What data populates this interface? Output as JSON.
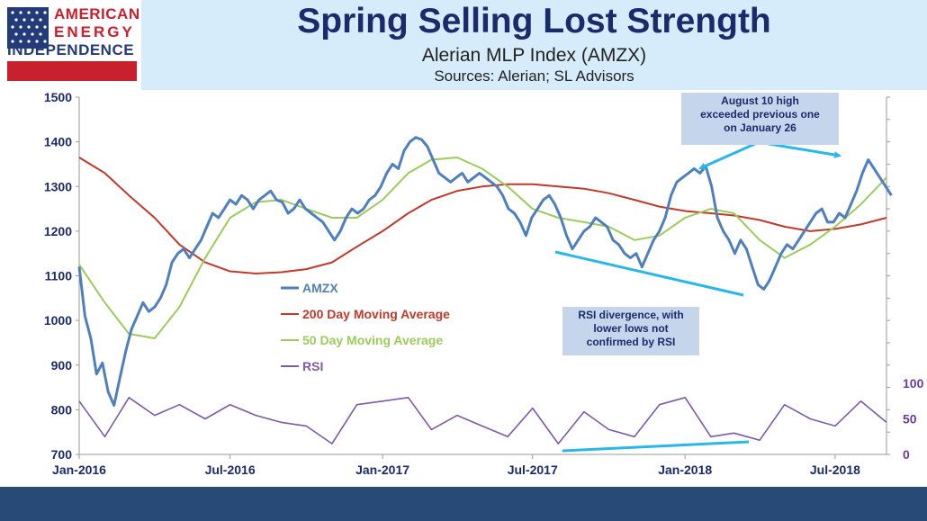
{
  "logo": {
    "line1": "AMERICAN",
    "line2": "ENERGY",
    "line3": "INDEPENDENCE"
  },
  "header": {
    "title": "Spring Selling Lost Strength",
    "subtitle": "Alerian MLP Index (AMZX)",
    "sources": "Sources: Alerian; SL Advisors"
  },
  "annotations": {
    "august": [
      "August 10 high",
      "exceeded previous one",
      "on January 26"
    ],
    "rsi": [
      "RSI divergence, with",
      "lower lows not",
      "confirmed by RSI"
    ]
  },
  "colors": {
    "amzx": "#4f7fbd",
    "ma200": "#c0392b",
    "ma50": "#9bcc5c",
    "rsi": "#7d5aa6",
    "arrow": "#29b6e8"
  },
  "chart_data": {
    "type": "line",
    "x_ticks": [
      "Jan-2016",
      "Jul-2016",
      "Jan-2017",
      "Jul-2017",
      "Jan-2018",
      "Jul-2018"
    ],
    "y_ticks": [
      "1500",
      "1400",
      "1300",
      "1200",
      "1100",
      "1000",
      "900",
      "800",
      "700"
    ],
    "y_right_ticks": [
      "100",
      "50",
      "0"
    ],
    "ylim": [
      700,
      1500
    ],
    "y_right_lim": [
      0,
      100
    ],
    "xlim": [
      "2016-01-01",
      "2018-09-01"
    ],
    "legend": [
      "AMZX",
      "200 Day Moving Average",
      "50 Day Moving Average",
      "RSI"
    ],
    "series": [
      {
        "name": "AMZX",
        "points": [
          [
            "2016-01-01",
            1120
          ],
          [
            "2016-01-08",
            1010
          ],
          [
            "2016-01-15",
            960
          ],
          [
            "2016-01-22",
            880
          ],
          [
            "2016-01-29",
            905
          ],
          [
            "2016-02-05",
            840
          ],
          [
            "2016-02-12",
            810
          ],
          [
            "2016-02-19",
            870
          ],
          [
            "2016-02-26",
            930
          ],
          [
            "2016-03-04",
            980
          ],
          [
            "2016-03-11",
            1010
          ],
          [
            "2016-03-18",
            1040
          ],
          [
            "2016-03-25",
            1020
          ],
          [
            "2016-04-01",
            1030
          ],
          [
            "2016-04-08",
            1050
          ],
          [
            "2016-04-15",
            1080
          ],
          [
            "2016-04-22",
            1130
          ],
          [
            "2016-04-29",
            1150
          ],
          [
            "2016-05-06",
            1160
          ],
          [
            "2016-05-13",
            1140
          ],
          [
            "2016-05-20",
            1160
          ],
          [
            "2016-05-27",
            1180
          ],
          [
            "2016-06-03",
            1210
          ],
          [
            "2016-06-10",
            1240
          ],
          [
            "2016-06-17",
            1230
          ],
          [
            "2016-06-24",
            1250
          ],
          [
            "2016-07-01",
            1270
          ],
          [
            "2016-07-08",
            1260
          ],
          [
            "2016-07-15",
            1280
          ],
          [
            "2016-07-22",
            1270
          ],
          [
            "2016-07-29",
            1250
          ],
          [
            "2016-08-05",
            1270
          ],
          [
            "2016-08-12",
            1280
          ],
          [
            "2016-08-19",
            1290
          ],
          [
            "2016-08-26",
            1270
          ],
          [
            "2016-09-02",
            1265
          ],
          [
            "2016-09-09",
            1240
          ],
          [
            "2016-09-16",
            1250
          ],
          [
            "2016-09-23",
            1270
          ],
          [
            "2016-09-30",
            1250
          ],
          [
            "2016-10-07",
            1240
          ],
          [
            "2016-10-14",
            1230
          ],
          [
            "2016-10-21",
            1220
          ],
          [
            "2016-10-28",
            1200
          ],
          [
            "2016-11-04",
            1180
          ],
          [
            "2016-11-11",
            1200
          ],
          [
            "2016-11-18",
            1230
          ],
          [
            "2016-11-25",
            1250
          ],
          [
            "2016-12-02",
            1240
          ],
          [
            "2016-12-09",
            1250
          ],
          [
            "2016-12-16",
            1270
          ],
          [
            "2016-12-23",
            1280
          ],
          [
            "2016-12-30",
            1300
          ],
          [
            "2017-01-06",
            1330
          ],
          [
            "2017-01-13",
            1350
          ],
          [
            "2017-01-20",
            1340
          ],
          [
            "2017-01-27",
            1380
          ],
          [
            "2017-02-03",
            1400
          ],
          [
            "2017-02-10",
            1410
          ],
          [
            "2017-02-17",
            1405
          ],
          [
            "2017-02-24",
            1390
          ],
          [
            "2017-03-03",
            1360
          ],
          [
            "2017-03-10",
            1330
          ],
          [
            "2017-03-17",
            1320
          ],
          [
            "2017-03-24",
            1310
          ],
          [
            "2017-03-31",
            1320
          ],
          [
            "2017-04-07",
            1330
          ],
          [
            "2017-04-14",
            1310
          ],
          [
            "2017-04-21",
            1320
          ],
          [
            "2017-04-28",
            1330
          ],
          [
            "2017-05-05",
            1320
          ],
          [
            "2017-05-12",
            1310
          ],
          [
            "2017-05-19",
            1300
          ],
          [
            "2017-05-26",
            1280
          ],
          [
            "2017-06-02",
            1250
          ],
          [
            "2017-06-09",
            1240
          ],
          [
            "2017-06-16",
            1220
          ],
          [
            "2017-06-23",
            1190
          ],
          [
            "2017-06-30",
            1230
          ],
          [
            "2017-07-07",
            1250
          ],
          [
            "2017-07-14",
            1270
          ],
          [
            "2017-07-21",
            1280
          ],
          [
            "2017-07-28",
            1260
          ],
          [
            "2017-08-04",
            1230
          ],
          [
            "2017-08-11",
            1190
          ],
          [
            "2017-08-18",
            1160
          ],
          [
            "2017-08-25",
            1180
          ],
          [
            "2017-09-01",
            1200
          ],
          [
            "2017-09-08",
            1210
          ],
          [
            "2017-09-15",
            1230
          ],
          [
            "2017-09-22",
            1220
          ],
          [
            "2017-09-29",
            1210
          ],
          [
            "2017-10-06",
            1180
          ],
          [
            "2017-10-13",
            1170
          ],
          [
            "2017-10-20",
            1150
          ],
          [
            "2017-10-27",
            1140
          ],
          [
            "2017-11-03",
            1150
          ],
          [
            "2017-11-10",
            1120
          ],
          [
            "2017-11-17",
            1150
          ],
          [
            "2017-11-24",
            1180
          ],
          [
            "2017-12-01",
            1200
          ],
          [
            "2017-12-08",
            1230
          ],
          [
            "2017-12-15",
            1280
          ],
          [
            "2017-12-22",
            1310
          ],
          [
            "2017-12-29",
            1320
          ],
          [
            "2018-01-05",
            1330
          ],
          [
            "2018-01-12",
            1340
          ],
          [
            "2018-01-19",
            1330
          ],
          [
            "2018-01-26",
            1345
          ],
          [
            "2018-02-02",
            1300
          ],
          [
            "2018-02-09",
            1230
          ],
          [
            "2018-02-16",
            1200
          ],
          [
            "2018-02-23",
            1180
          ],
          [
            "2018-03-02",
            1150
          ],
          [
            "2018-03-09",
            1180
          ],
          [
            "2018-03-16",
            1160
          ],
          [
            "2018-03-23",
            1120
          ],
          [
            "2018-03-30",
            1080
          ],
          [
            "2018-04-06",
            1070
          ],
          [
            "2018-04-13",
            1090
          ],
          [
            "2018-04-20",
            1120
          ],
          [
            "2018-04-27",
            1150
          ],
          [
            "2018-05-04",
            1170
          ],
          [
            "2018-05-11",
            1160
          ],
          [
            "2018-05-18",
            1180
          ],
          [
            "2018-05-25",
            1200
          ],
          [
            "2018-06-01",
            1220
          ],
          [
            "2018-06-08",
            1240
          ],
          [
            "2018-06-15",
            1250
          ],
          [
            "2018-06-22",
            1220
          ],
          [
            "2018-06-29",
            1220
          ],
          [
            "2018-07-06",
            1240
          ],
          [
            "2018-07-13",
            1230
          ],
          [
            "2018-07-20",
            1260
          ],
          [
            "2018-07-27",
            1290
          ],
          [
            "2018-08-03",
            1330
          ],
          [
            "2018-08-10",
            1360
          ],
          [
            "2018-08-17",
            1340
          ],
          [
            "2018-08-24",
            1320
          ],
          [
            "2018-08-31",
            1300
          ],
          [
            "2018-09-07",
            1280
          ]
        ]
      },
      {
        "name": "200 Day Moving Average",
        "points": [
          [
            "2016-01-01",
            1365
          ],
          [
            "2016-02-01",
            1330
          ],
          [
            "2016-03-01",
            1280
          ],
          [
            "2016-04-01",
            1230
          ],
          [
            "2016-05-01",
            1170
          ],
          [
            "2016-06-01",
            1130
          ],
          [
            "2016-07-01",
            1110
          ],
          [
            "2016-08-01",
            1105
          ],
          [
            "2016-09-01",
            1108
          ],
          [
            "2016-10-01",
            1115
          ],
          [
            "2016-11-01",
            1130
          ],
          [
            "2016-12-01",
            1165
          ],
          [
            "2017-01-01",
            1200
          ],
          [
            "2017-02-01",
            1240
          ],
          [
            "2017-03-01",
            1270
          ],
          [
            "2017-04-01",
            1290
          ],
          [
            "2017-05-01",
            1300
          ],
          [
            "2017-06-01",
            1305
          ],
          [
            "2017-07-01",
            1305
          ],
          [
            "2017-08-01",
            1300
          ],
          [
            "2017-09-01",
            1295
          ],
          [
            "2017-10-01",
            1285
          ],
          [
            "2017-11-01",
            1270
          ],
          [
            "2017-12-01",
            1255
          ],
          [
            "2018-01-01",
            1245
          ],
          [
            "2018-02-01",
            1240
          ],
          [
            "2018-03-01",
            1235
          ],
          [
            "2018-04-01",
            1225
          ],
          [
            "2018-05-01",
            1210
          ],
          [
            "2018-06-01",
            1200
          ],
          [
            "2018-07-01",
            1205
          ],
          [
            "2018-08-01",
            1215
          ],
          [
            "2018-09-01",
            1230
          ]
        ]
      },
      {
        "name": "50 Day Moving Average",
        "points": [
          [
            "2016-01-01",
            1125
          ],
          [
            "2016-02-01",
            1040
          ],
          [
            "2016-03-01",
            970
          ],
          [
            "2016-04-01",
            960
          ],
          [
            "2016-05-01",
            1030
          ],
          [
            "2016-06-01",
            1140
          ],
          [
            "2016-07-01",
            1230
          ],
          [
            "2016-08-01",
            1265
          ],
          [
            "2016-09-01",
            1270
          ],
          [
            "2016-10-01",
            1250
          ],
          [
            "2016-11-01",
            1230
          ],
          [
            "2016-12-01",
            1230
          ],
          [
            "2017-01-01",
            1270
          ],
          [
            "2017-02-01",
            1330
          ],
          [
            "2017-03-01",
            1360
          ],
          [
            "2017-04-01",
            1365
          ],
          [
            "2017-05-01",
            1340
          ],
          [
            "2017-06-01",
            1300
          ],
          [
            "2017-07-01",
            1250
          ],
          [
            "2017-08-01",
            1230
          ],
          [
            "2017-09-01",
            1220
          ],
          [
            "2017-10-01",
            1210
          ],
          [
            "2017-11-01",
            1180
          ],
          [
            "2017-12-01",
            1190
          ],
          [
            "2018-01-01",
            1230
          ],
          [
            "2018-02-01",
            1250
          ],
          [
            "2018-03-01",
            1240
          ],
          [
            "2018-04-01",
            1180
          ],
          [
            "2018-05-01",
            1140
          ],
          [
            "2018-06-01",
            1170
          ],
          [
            "2018-07-01",
            1210
          ],
          [
            "2018-08-01",
            1260
          ],
          [
            "2018-09-01",
            1320
          ]
        ]
      },
      {
        "name": "RSI",
        "axis": "right",
        "points": [
          [
            "2016-01-01",
            75
          ],
          [
            "2016-02-01",
            25
          ],
          [
            "2016-03-01",
            80
          ],
          [
            "2016-04-01",
            55
          ],
          [
            "2016-05-01",
            70
          ],
          [
            "2016-06-01",
            50
          ],
          [
            "2016-07-01",
            70
          ],
          [
            "2016-08-01",
            55
          ],
          [
            "2016-09-01",
            45
          ],
          [
            "2016-10-01",
            40
          ],
          [
            "2016-11-01",
            15
          ],
          [
            "2016-12-01",
            70
          ],
          [
            "2017-01-01",
            75
          ],
          [
            "2017-02-01",
            80
          ],
          [
            "2017-03-01",
            35
          ],
          [
            "2017-04-01",
            55
          ],
          [
            "2017-05-01",
            40
          ],
          [
            "2017-06-01",
            25
          ],
          [
            "2017-07-01",
            65
          ],
          [
            "2017-08-01",
            15
          ],
          [
            "2017-09-01",
            60
          ],
          [
            "2017-10-01",
            35
          ],
          [
            "2017-11-01",
            25
          ],
          [
            "2017-12-01",
            70
          ],
          [
            "2018-01-01",
            80
          ],
          [
            "2018-02-01",
            25
          ],
          [
            "2018-03-01",
            30
          ],
          [
            "2018-04-01",
            20
          ],
          [
            "2018-05-01",
            70
          ],
          [
            "2018-06-01",
            50
          ],
          [
            "2018-07-01",
            40
          ],
          [
            "2018-08-01",
            75
          ],
          [
            "2018-09-01",
            45
          ]
        ]
      }
    ]
  }
}
